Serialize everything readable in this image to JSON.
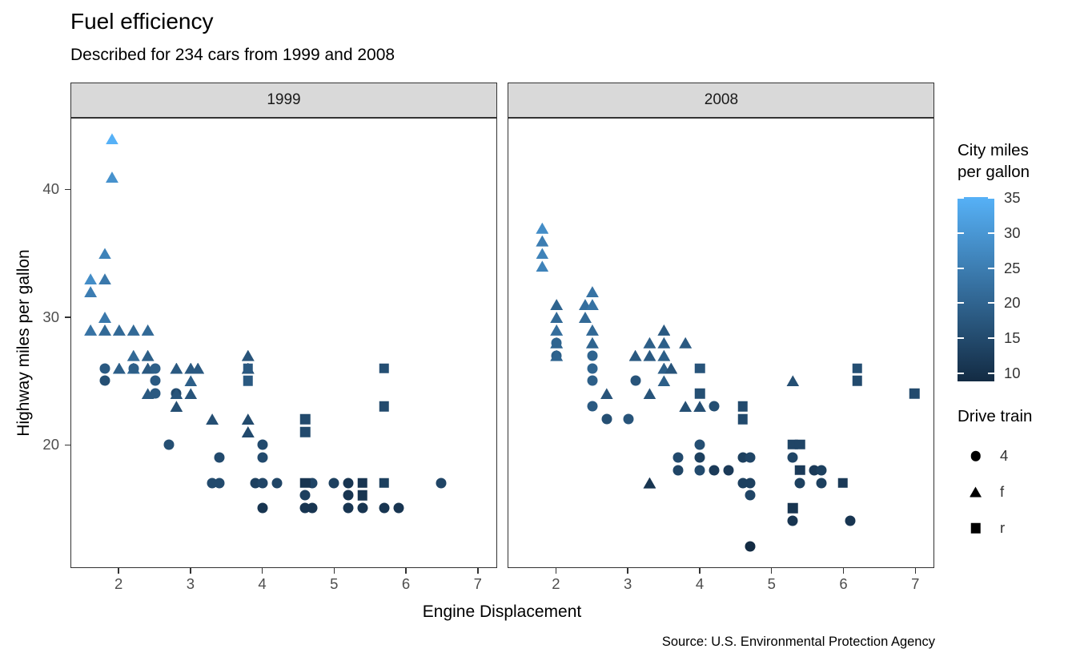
{
  "title": "Fuel efficiency",
  "subtitle": "Described for 234 cars from 1999 and 2008",
  "caption": "Source: U.S. Environmental Protection Agency",
  "facets": [
    "1999",
    "2008"
  ],
  "x_axis": {
    "label": "Engine Displacement",
    "ticks": [
      2,
      3,
      4,
      5,
      6,
      7
    ]
  },
  "y_axis": {
    "label": "Highway miles per gallon",
    "ticks": [
      20,
      30,
      40
    ]
  },
  "legend": {
    "color": {
      "title_lines": [
        "City miles",
        "per gallon"
      ],
      "title": "City miles per gallon",
      "ticks": [
        35,
        30,
        25,
        20,
        15,
        10
      ],
      "gradient_high": "#56B1F7",
      "gradient_low": "#132B43",
      "domain": [
        9,
        35
      ]
    },
    "shape": {
      "title": "Drive train",
      "items": [
        {
          "shape": "c",
          "label": "4"
        },
        {
          "shape": "t",
          "label": "f"
        },
        {
          "shape": "s",
          "label": "r"
        }
      ]
    }
  },
  "colors": {
    "panel_border": "#333333",
    "strip_fill": "#D9D9D9",
    "tick_label": "#4D4D4D",
    "text": "#000000"
  },
  "chart_data": {
    "type": "scatter",
    "title": "Fuel efficiency",
    "subtitle": "Described for 234 cars from 1999 and 2008",
    "caption": "Source: U.S. Environmental Protection Agency",
    "xlabel": "Engine Displacement",
    "ylabel": "Highway miles per gallon",
    "color_label": "City miles per gallon",
    "shape_label": "Drive train",
    "xlim": [
      1.33,
      7.27
    ],
    "ylim": [
      10.4,
      45.6
    ],
    "x_ticks": [
      2,
      3,
      4,
      5,
      6,
      7
    ],
    "y_ticks": [
      20,
      30,
      40
    ],
    "grid": false,
    "legend_position": "right",
    "color_scale": {
      "low_value": 9,
      "low_hex": "#132B43",
      "high_value": 35,
      "high_hex": "#56B1F7"
    },
    "shape_map": {
      "c": "4",
      "t": "f",
      "s": "r"
    },
    "point_format": [
      "engine_displacement",
      "highway_mpg",
      "shape",
      "city_mpg"
    ],
    "facets": [
      {
        "label": "1999",
        "points": [
          [
            2.8,
            24,
            "c",
            15
          ],
          [
            1.6,
            33,
            "t",
            28
          ],
          [
            1.6,
            32,
            "t",
            25
          ],
          [
            1.6,
            29,
            "t",
            23
          ],
          [
            1.8,
            35,
            "t",
            26
          ],
          [
            1.8,
            33,
            "t",
            24
          ],
          [
            1.8,
            30,
            "t",
            24
          ],
          [
            1.8,
            29,
            "t",
            21
          ],
          [
            1.9,
            44,
            "t",
            35
          ],
          [
            1.9,
            41,
            "t",
            29
          ],
          [
            2.0,
            29,
            "t",
            21
          ],
          [
            2.0,
            26,
            "t",
            19
          ],
          [
            2.2,
            29,
            "t",
            21
          ],
          [
            2.2,
            27,
            "t",
            21
          ],
          [
            2.2,
            26,
            "t",
            21
          ],
          [
            2.4,
            29,
            "t",
            21
          ],
          [
            2.4,
            27,
            "t",
            19
          ],
          [
            2.4,
            26,
            "t",
            18
          ],
          [
            2.4,
            24,
            "t",
            18
          ],
          [
            2.8,
            26,
            "t",
            18
          ],
          [
            2.8,
            24,
            "t",
            17
          ],
          [
            2.8,
            23,
            "t",
            16
          ],
          [
            3.0,
            26,
            "t",
            18
          ],
          [
            3.0,
            25,
            "t",
            19
          ],
          [
            3.0,
            24,
            "t",
            17
          ],
          [
            3.1,
            26,
            "t",
            18
          ],
          [
            3.3,
            22,
            "t",
            16
          ],
          [
            3.8,
            27,
            "t",
            17
          ],
          [
            3.8,
            26,
            "t",
            16
          ],
          [
            3.8,
            22,
            "t",
            15
          ],
          [
            3.8,
            21,
            "t",
            15
          ],
          [
            1.8,
            26,
            "c",
            18
          ],
          [
            1.8,
            25,
            "c",
            16
          ],
          [
            2.2,
            26,
            "c",
            19
          ],
          [
            2.5,
            26,
            "c",
            19
          ],
          [
            2.5,
            25,
            "c",
            18
          ],
          [
            2.5,
            24,
            "c",
            18
          ],
          [
            2.7,
            20,
            "c",
            16
          ],
          [
            3.3,
            17,
            "c",
            15
          ],
          [
            3.4,
            19,
            "c",
            15
          ],
          [
            3.4,
            17,
            "c",
            15
          ],
          [
            3.9,
            17,
            "c",
            13
          ],
          [
            4.0,
            20,
            "c",
            15
          ],
          [
            4.0,
            19,
            "c",
            15
          ],
          [
            4.0,
            17,
            "c",
            14
          ],
          [
            4.0,
            15,
            "c",
            11
          ],
          [
            4.2,
            17,
            "c",
            14
          ],
          [
            4.6,
            16,
            "c",
            13
          ],
          [
            4.6,
            15,
            "c",
            11
          ],
          [
            4.7,
            17,
            "c",
            14
          ],
          [
            4.7,
            15,
            "c",
            11
          ],
          [
            5.0,
            17,
            "c",
            13
          ],
          [
            5.2,
            17,
            "c",
            11
          ],
          [
            5.2,
            16,
            "c",
            11
          ],
          [
            5.2,
            15,
            "c",
            11
          ],
          [
            5.4,
            15,
            "c",
            11
          ],
          [
            5.7,
            15,
            "c",
            11
          ],
          [
            5.9,
            15,
            "c",
            11
          ],
          [
            6.5,
            17,
            "c",
            14
          ],
          [
            3.8,
            26,
            "s",
            18
          ],
          [
            3.8,
            25,
            "s",
            18
          ],
          [
            4.6,
            22,
            "s",
            15
          ],
          [
            4.6,
            21,
            "s",
            15
          ],
          [
            4.6,
            17,
            "s",
            11
          ],
          [
            5.4,
            17,
            "s",
            11
          ],
          [
            5.4,
            16,
            "s",
            11
          ],
          [
            5.7,
            26,
            "s",
            16
          ],
          [
            5.7,
            23,
            "s",
            15
          ],
          [
            5.7,
            17,
            "s",
            13
          ]
        ]
      },
      {
        "label": "2008",
        "points": [
          [
            2.0,
            28,
            "c",
            20
          ],
          [
            2.0,
            27,
            "c",
            19
          ],
          [
            1.8,
            37,
            "t",
            28
          ],
          [
            1.8,
            36,
            "t",
            25
          ],
          [
            1.8,
            35,
            "t",
            26
          ],
          [
            1.8,
            34,
            "t",
            26
          ],
          [
            2.0,
            31,
            "t",
            20
          ],
          [
            2.0,
            30,
            "t",
            21
          ],
          [
            2.0,
            29,
            "t",
            22
          ],
          [
            2.0,
            28,
            "t",
            20
          ],
          [
            2.0,
            27,
            "t",
            20
          ],
          [
            2.4,
            31,
            "t",
            22
          ],
          [
            2.4,
            30,
            "t",
            21
          ],
          [
            2.5,
            32,
            "t",
            23
          ],
          [
            2.5,
            31,
            "t",
            23
          ],
          [
            2.5,
            29,
            "t",
            21
          ],
          [
            2.5,
            28,
            "t",
            20
          ],
          [
            2.7,
            24,
            "t",
            17
          ],
          [
            3.1,
            27,
            "t",
            18
          ],
          [
            3.3,
            28,
            "t",
            19
          ],
          [
            3.3,
            27,
            "t",
            18
          ],
          [
            3.3,
            24,
            "t",
            17
          ],
          [
            3.3,
            17,
            "t",
            11
          ],
          [
            3.5,
            29,
            "t",
            18
          ],
          [
            3.5,
            28,
            "t",
            19
          ],
          [
            3.5,
            27,
            "t",
            19
          ],
          [
            3.5,
            26,
            "t",
            19
          ],
          [
            3.5,
            25,
            "t",
            19
          ],
          [
            3.6,
            26,
            "t",
            17
          ],
          [
            3.8,
            28,
            "t",
            18
          ],
          [
            3.8,
            23,
            "t",
            16
          ],
          [
            4.0,
            23,
            "t",
            16
          ],
          [
            5.3,
            25,
            "t",
            16
          ],
          [
            2.5,
            27,
            "c",
            20
          ],
          [
            2.5,
            26,
            "c",
            20
          ],
          [
            2.5,
            25,
            "c",
            19
          ],
          [
            2.5,
            23,
            "c",
            18
          ],
          [
            2.7,
            22,
            "c",
            16
          ],
          [
            3.0,
            22,
            "c",
            17
          ],
          [
            3.1,
            25,
            "c",
            17
          ],
          [
            3.7,
            19,
            "c",
            15
          ],
          [
            3.7,
            18,
            "c",
            14
          ],
          [
            4.0,
            20,
            "c",
            16
          ],
          [
            4.0,
            19,
            "c",
            13
          ],
          [
            4.0,
            18,
            "c",
            15
          ],
          [
            4.2,
            23,
            "c",
            16
          ],
          [
            4.2,
            18,
            "c",
            12
          ],
          [
            4.4,
            18,
            "c",
            12
          ],
          [
            4.6,
            19,
            "c",
            13
          ],
          [
            4.6,
            17,
            "c",
            13
          ],
          [
            4.7,
            19,
            "c",
            14
          ],
          [
            4.7,
            17,
            "c",
            13
          ],
          [
            4.7,
            16,
            "c",
            14
          ],
          [
            4.7,
            12,
            "c",
            9
          ],
          [
            5.3,
            19,
            "c",
            14
          ],
          [
            5.3,
            14,
            "c",
            11
          ],
          [
            5.4,
            17,
            "c",
            13
          ],
          [
            5.6,
            18,
            "c",
            12
          ],
          [
            5.7,
            18,
            "c",
            13
          ],
          [
            5.7,
            17,
            "c",
            13
          ],
          [
            6.1,
            14,
            "c",
            11
          ],
          [
            4.0,
            26,
            "s",
            17
          ],
          [
            4.0,
            24,
            "s",
            16
          ],
          [
            4.6,
            23,
            "s",
            15
          ],
          [
            4.6,
            22,
            "s",
            15
          ],
          [
            5.3,
            20,
            "s",
            14
          ],
          [
            5.4,
            20,
            "s",
            14
          ],
          [
            5.4,
            18,
            "s",
            12
          ],
          [
            5.3,
            15,
            "s",
            11
          ],
          [
            6.0,
            17,
            "s",
            12
          ],
          [
            6.2,
            26,
            "s",
            16
          ],
          [
            6.2,
            25,
            "s",
            15
          ],
          [
            7.0,
            24,
            "s",
            15
          ]
        ]
      }
    ]
  }
}
